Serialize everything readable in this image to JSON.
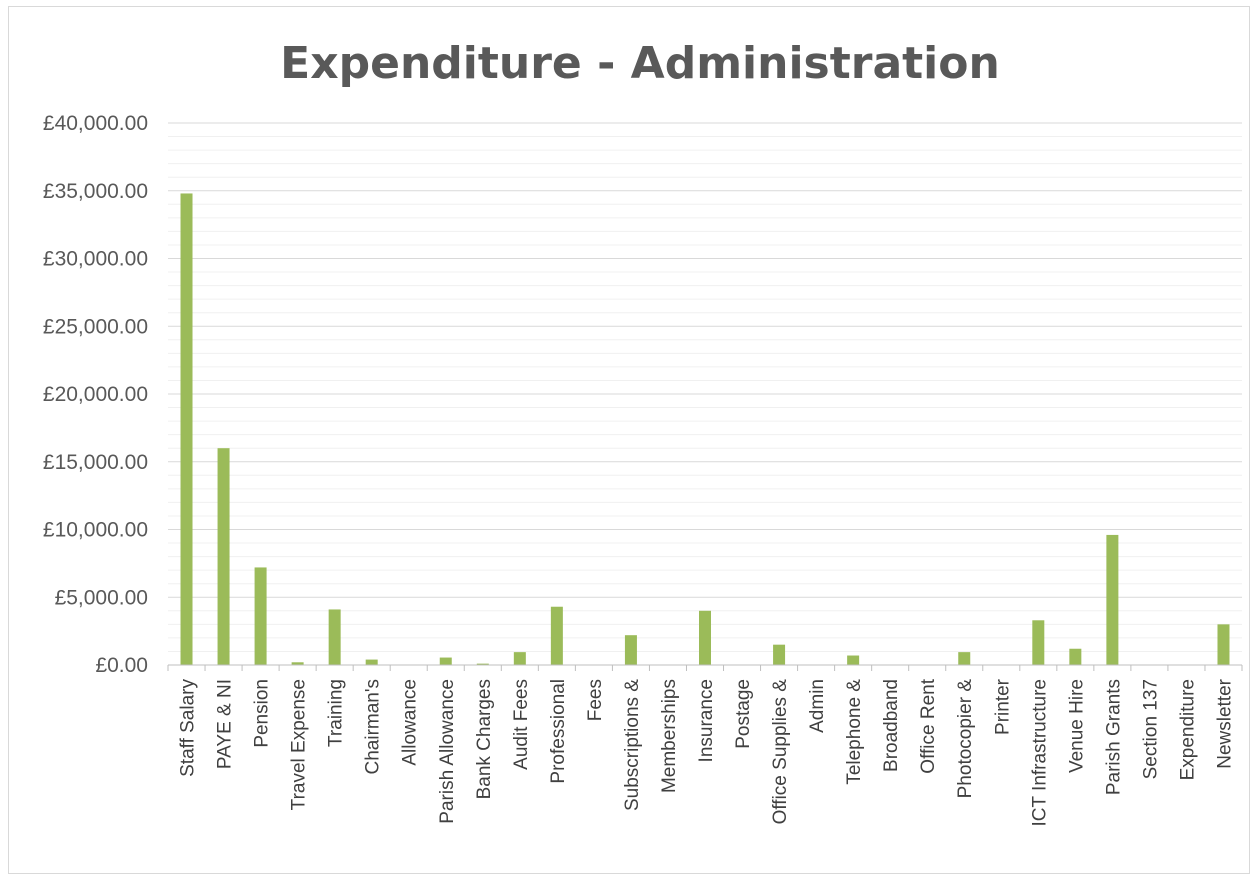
{
  "chart_data": {
    "type": "bar",
    "title": "Expenditure - Administration",
    "xlabel": "",
    "ylabel": "",
    "ylim": [
      0,
      40000
    ],
    "ytick_values": [
      0,
      5000,
      10000,
      15000,
      20000,
      25000,
      30000,
      35000,
      40000
    ],
    "ytick_labels": [
      "£0.00",
      "£5,000.00",
      "£10,000.00",
      "£15,000.00",
      "£20,000.00",
      "£25,000.00",
      "£30,000.00",
      "£35,000.00",
      "£40,000.00"
    ],
    "minor_grid_step": 1000,
    "grid": true,
    "legend": "none",
    "bar_color": "#9bbb59",
    "categories": [
      "Staff Salary",
      "PAYE & NI",
      "Pension",
      "Travel Expense",
      "Training",
      "Chairman's",
      "Allowance",
      "Parish Allowance",
      "Bank Charges",
      "Audit Fees",
      "Professional",
      "Fees",
      "Subscriptions &",
      "Memberships",
      "Insurance",
      "Postage",
      "Office Supplies &",
      "Admin",
      "Telephone &",
      "Broadband",
      "Office Rent",
      "Photocopier &",
      "Printer",
      "ICT Infrastructure",
      "Venue Hire",
      "Parish Grants",
      "Section 137",
      "Expenditure",
      "Newsletter"
    ],
    "values": [
      34800,
      16000,
      7200,
      200,
      4100,
      400,
      0,
      550,
      100,
      950,
      4300,
      0,
      2200,
      0,
      4000,
      0,
      1500,
      0,
      700,
      0,
      0,
      950,
      0,
      3300,
      1200,
      9600,
      0,
      0,
      3000
    ]
  }
}
